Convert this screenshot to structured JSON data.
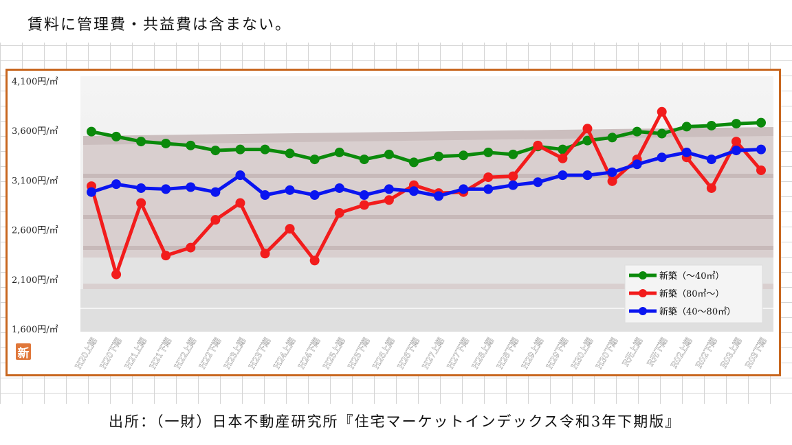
{
  "header": {
    "note": "賃料に管理費・共益費は含まない。"
  },
  "footer": {
    "source": "出所：（一財）日本不動産研究所『住宅マーケットインデックス令和3年下期版』"
  },
  "logo": {
    "text": "新"
  },
  "colors": {
    "frame": "#c8661e",
    "green": "#0b8a0b",
    "red": "#f21c1c",
    "blue": "#0a15f0"
  },
  "chart_data": {
    "type": "line",
    "categories": [
      "H20上期",
      "H20下期",
      "H21上期",
      "H21下期",
      "H22上期",
      "H22下期",
      "H23上期",
      "H23下期",
      "H24上期",
      "H24下期",
      "H25上期",
      "H25下期",
      "H26上期",
      "H26下期",
      "H27上期",
      "H27下期",
      "H28上期",
      "H28下期",
      "H29上期",
      "H29下期",
      "H30上期",
      "H30下期",
      "R元上期",
      "R元下期",
      "R02上期",
      "R02下期",
      "R03上期",
      "R03下期"
    ],
    "ylim": [
      1600,
      4100
    ],
    "yticks": [
      {
        "value": 4100,
        "label": "4,100円/㎡"
      },
      {
        "value": 3600,
        "label": "3,600円/㎡"
      },
      {
        "value": 3100,
        "label": "3,100円/㎡"
      },
      {
        "value": 2600,
        "label": "2,600円/㎡"
      },
      {
        "value": 2100,
        "label": "2,100円/㎡"
      },
      {
        "value": 1600,
        "label": "1,600円/㎡"
      }
    ],
    "legend_position": "bottom-right",
    "grid": false,
    "series": [
      {
        "name": "新築（～40㎡）",
        "color": "#0b8a0b",
        "values": [
          3590,
          3540,
          3490,
          3470,
          3450,
          3400,
          3410,
          3410,
          3370,
          3310,
          3380,
          3310,
          3360,
          3280,
          3340,
          3350,
          3380,
          3360,
          3440,
          3410,
          3500,
          3530,
          3590,
          3570,
          3640,
          3650,
          3670,
          3680
        ]
      },
      {
        "name": "新築（80㎡～）",
        "color": "#f21c1c",
        "values": [
          3040,
          2150,
          2870,
          2340,
          2420,
          2700,
          2870,
          2360,
          2610,
          2290,
          2770,
          2850,
          2900,
          3050,
          2970,
          2980,
          3130,
          3140,
          3450,
          3320,
          3620,
          3090,
          3310,
          3790,
          3330,
          3020,
          3490,
          3200
        ]
      },
      {
        "name": "新築（40～80㎡）",
        "color": "#0a15f0",
        "values": [
          2980,
          3060,
          3020,
          3010,
          3030,
          2980,
          3150,
          2950,
          3000,
          2950,
          3020,
          2950,
          3010,
          2990,
          2940,
          3010,
          3010,
          3050,
          3080,
          3150,
          3150,
          3180,
          3260,
          3330,
          3380,
          3310,
          3400,
          3410
        ]
      }
    ]
  }
}
